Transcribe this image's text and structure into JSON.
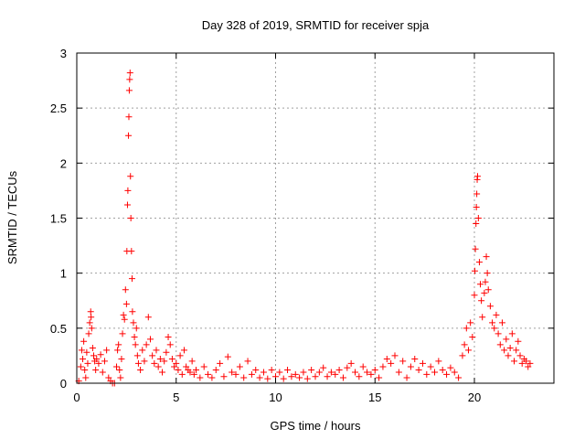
{
  "chart_data": {
    "type": "scatter",
    "title": "Day 328 of 2019, SRMTID for receiver spja",
    "xlabel": "GPS time / hours",
    "ylabel": "SRMTID / TECUs",
    "xlim": [
      0,
      24
    ],
    "ylim": [
      0,
      3
    ],
    "x_ticks": [
      0,
      5,
      10,
      15,
      20
    ],
    "x_tick_labels": [
      "0",
      "5",
      "10",
      "15",
      "20"
    ],
    "y_ticks": [
      0,
      0.5,
      1,
      1.5,
      2,
      2.5,
      3
    ],
    "y_tick_labels": [
      "0",
      "0.5",
      "1",
      "1.5",
      "2",
      "2.5",
      "3"
    ],
    "grid": true,
    "marker": "plus",
    "color": "#ff0000",
    "series": [
      {
        "name": "SRMTID",
        "points": [
          [
            0.1,
            0.02
          ],
          [
            0.2,
            0.15
          ],
          [
            0.25,
            0.3
          ],
          [
            0.3,
            0.22
          ],
          [
            0.35,
            0.38
          ],
          [
            0.4,
            0.12
          ],
          [
            0.45,
            0.05
          ],
          [
            0.5,
            0.28
          ],
          [
            0.55,
            0.18
          ],
          [
            0.6,
            0.45
          ],
          [
            0.65,
            0.55
          ],
          [
            0.7,
            0.65
          ],
          [
            0.72,
            0.6
          ],
          [
            0.75,
            0.5
          ],
          [
            0.8,
            0.32
          ],
          [
            0.85,
            0.25
          ],
          [
            0.9,
            0.2
          ],
          [
            0.95,
            0.12
          ],
          [
            1.0,
            0.22
          ],
          [
            1.1,
            0.18
          ],
          [
            1.2,
            0.26
          ],
          [
            1.3,
            0.1
          ],
          [
            1.4,
            0.2
          ],
          [
            1.5,
            0.3
          ],
          [
            1.6,
            0.05
          ],
          [
            1.7,
            0.02
          ],
          [
            1.8,
            0.0
          ],
          [
            1.9,
            0.0
          ],
          [
            2.0,
            0.15
          ],
          [
            2.05,
            0.3
          ],
          [
            2.1,
            0.35
          ],
          [
            2.15,
            0.12
          ],
          [
            2.2,
            0.05
          ],
          [
            2.25,
            0.22
          ],
          [
            2.3,
            0.45
          ],
          [
            2.35,
            0.62
          ],
          [
            2.4,
            0.58
          ],
          [
            2.45,
            0.85
          ],
          [
            2.5,
            0.72
          ],
          [
            2.52,
            1.2
          ],
          [
            2.55,
            1.62
          ],
          [
            2.57,
            1.75
          ],
          [
            2.6,
            2.25
          ],
          [
            2.62,
            2.42
          ],
          [
            2.64,
            2.66
          ],
          [
            2.66,
            2.76
          ],
          [
            2.68,
            2.82
          ],
          [
            2.7,
            1.88
          ],
          [
            2.72,
            1.5
          ],
          [
            2.75,
            1.2
          ],
          [
            2.78,
            0.95
          ],
          [
            2.8,
            0.65
          ],
          [
            2.85,
            0.55
          ],
          [
            2.9,
            0.42
          ],
          [
            2.95,
            0.35
          ],
          [
            3.0,
            0.5
          ],
          [
            3.05,
            0.25
          ],
          [
            3.1,
            0.18
          ],
          [
            3.2,
            0.12
          ],
          [
            3.3,
            0.3
          ],
          [
            3.4,
            0.2
          ],
          [
            3.5,
            0.35
          ],
          [
            3.6,
            0.6
          ],
          [
            3.7,
            0.4
          ],
          [
            3.8,
            0.25
          ],
          [
            3.9,
            0.18
          ],
          [
            4.0,
            0.3
          ],
          [
            4.1,
            0.15
          ],
          [
            4.2,
            0.22
          ],
          [
            4.3,
            0.1
          ],
          [
            4.4,
            0.2
          ],
          [
            4.5,
            0.28
          ],
          [
            4.6,
            0.42
          ],
          [
            4.7,
            0.35
          ],
          [
            4.8,
            0.22
          ],
          [
            4.9,
            0.15
          ],
          [
            5.0,
            0.18
          ],
          [
            5.1,
            0.12
          ],
          [
            5.2,
            0.25
          ],
          [
            5.3,
            0.08
          ],
          [
            5.4,
            0.3
          ],
          [
            5.5,
            0.15
          ],
          [
            5.6,
            0.12
          ],
          [
            5.7,
            0.1
          ],
          [
            5.8,
            0.2
          ],
          [
            5.9,
            0.08
          ],
          [
            6.0,
            0.12
          ],
          [
            6.2,
            0.05
          ],
          [
            6.4,
            0.15
          ],
          [
            6.6,
            0.08
          ],
          [
            6.8,
            0.05
          ],
          [
            7.0,
            0.12
          ],
          [
            7.2,
            0.18
          ],
          [
            7.4,
            0.06
          ],
          [
            7.6,
            0.24
          ],
          [
            7.8,
            0.1
          ],
          [
            8.0,
            0.08
          ],
          [
            8.2,
            0.15
          ],
          [
            8.4,
            0.05
          ],
          [
            8.6,
            0.2
          ],
          [
            8.8,
            0.08
          ],
          [
            9.0,
            0.12
          ],
          [
            9.2,
            0.05
          ],
          [
            9.4,
            0.1
          ],
          [
            9.6,
            0.04
          ],
          [
            9.8,
            0.12
          ],
          [
            10.0,
            0.06
          ],
          [
            10.2,
            0.1
          ],
          [
            10.4,
            0.04
          ],
          [
            10.6,
            0.12
          ],
          [
            10.8,
            0.06
          ],
          [
            11.0,
            0.08
          ],
          [
            11.2,
            0.05
          ],
          [
            11.4,
            0.1
          ],
          [
            11.6,
            0.04
          ],
          [
            11.8,
            0.12
          ],
          [
            12.0,
            0.06
          ],
          [
            12.2,
            0.1
          ],
          [
            12.4,
            0.14
          ],
          [
            12.6,
            0.06
          ],
          [
            12.8,
            0.1
          ],
          [
            13.0,
            0.08
          ],
          [
            13.2,
            0.12
          ],
          [
            13.4,
            0.05
          ],
          [
            13.6,
            0.14
          ],
          [
            13.8,
            0.18
          ],
          [
            14.0,
            0.1
          ],
          [
            14.2,
            0.06
          ],
          [
            14.4,
            0.15
          ],
          [
            14.6,
            0.1
          ],
          [
            14.8,
            0.08
          ],
          [
            15.0,
            0.12
          ],
          [
            15.2,
            0.05
          ],
          [
            15.4,
            0.15
          ],
          [
            15.6,
            0.22
          ],
          [
            15.8,
            0.18
          ],
          [
            16.0,
            0.25
          ],
          [
            16.2,
            0.1
          ],
          [
            16.4,
            0.2
          ],
          [
            16.6,
            0.05
          ],
          [
            16.8,
            0.15
          ],
          [
            17.0,
            0.22
          ],
          [
            17.2,
            0.12
          ],
          [
            17.4,
            0.18
          ],
          [
            17.6,
            0.08
          ],
          [
            17.8,
            0.15
          ],
          [
            18.0,
            0.1
          ],
          [
            18.2,
            0.2
          ],
          [
            18.4,
            0.12
          ],
          [
            18.6,
            0.08
          ],
          [
            18.8,
            0.14
          ],
          [
            19.0,
            0.1
          ],
          [
            19.2,
            0.05
          ],
          [
            19.4,
            0.25
          ],
          [
            19.5,
            0.35
          ],
          [
            19.6,
            0.5
          ],
          [
            19.7,
            0.3
          ],
          [
            19.8,
            0.55
          ],
          [
            19.9,
            0.42
          ],
          [
            20.0,
            0.8
          ],
          [
            20.02,
            1.02
          ],
          [
            20.05,
            1.22
          ],
          [
            20.08,
            1.45
          ],
          [
            20.1,
            1.6
          ],
          [
            20.12,
            1.72
          ],
          [
            20.14,
            1.85
          ],
          [
            20.16,
            1.88
          ],
          [
            20.2,
            1.5
          ],
          [
            20.25,
            1.1
          ],
          [
            20.3,
            0.9
          ],
          [
            20.35,
            0.75
          ],
          [
            20.4,
            0.6
          ],
          [
            20.5,
            0.82
          ],
          [
            20.55,
            0.92
          ],
          [
            20.6,
            1.15
          ],
          [
            20.65,
            1.0
          ],
          [
            20.7,
            0.85
          ],
          [
            20.8,
            0.7
          ],
          [
            20.9,
            0.55
          ],
          [
            21.0,
            0.5
          ],
          [
            21.1,
            0.62
          ],
          [
            21.2,
            0.45
          ],
          [
            21.3,
            0.35
          ],
          [
            21.4,
            0.55
          ],
          [
            21.5,
            0.3
          ],
          [
            21.6,
            0.4
          ],
          [
            21.7,
            0.25
          ],
          [
            21.8,
            0.32
          ],
          [
            21.9,
            0.45
          ],
          [
            22.0,
            0.2
          ],
          [
            22.1,
            0.3
          ],
          [
            22.2,
            0.38
          ],
          [
            22.3,
            0.25
          ],
          [
            22.4,
            0.18
          ],
          [
            22.5,
            0.22
          ],
          [
            22.6,
            0.2
          ],
          [
            22.7,
            0.15
          ],
          [
            22.8,
            0.18
          ]
        ]
      }
    ]
  }
}
